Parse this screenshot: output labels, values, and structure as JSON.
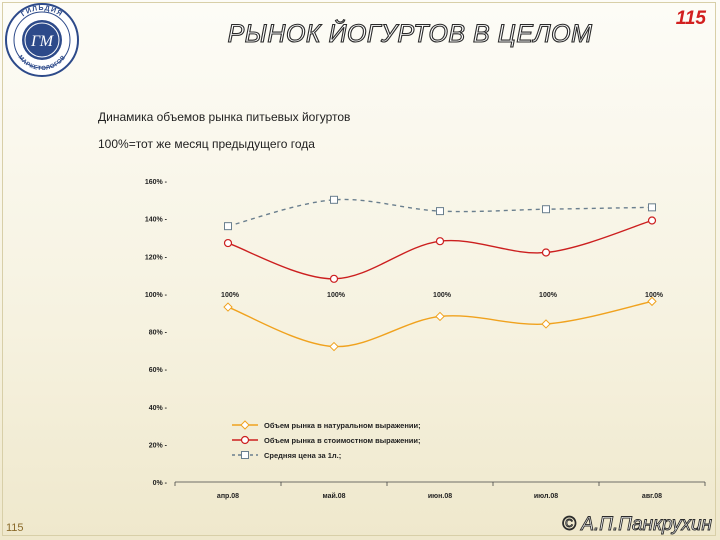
{
  "header": {
    "title": "РЫНОК ЙОГУРТОВ В ЦЕЛОМ",
    "page_number": "115",
    "logo": {
      "icon": "emblem-logo",
      "text_top": "ГИЛЬДИЯ",
      "text_bottom": "МАРКЕТОЛОГОВ",
      "monogram": "ГМ"
    }
  },
  "text": {
    "line1": "Динамика объемов рынка питьевых йогуртов",
    "line2": "100%=тот же месяц предыдущего года"
  },
  "chart_data": {
    "type": "line",
    "categories": [
      "апр.08",
      "май.08",
      "июн.08",
      "июл.08",
      "авг.08"
    ],
    "ylim": [
      0,
      160
    ],
    "y_ticks": [
      "0%",
      "20%",
      "40%",
      "60%",
      "80%",
      "100%",
      "120%",
      "140%",
      "160%"
    ],
    "baseline_labels": [
      "100%",
      "100%",
      "100%",
      "100%",
      "100%"
    ],
    "series": [
      {
        "name": "Объем рынка в натуральном выражении;",
        "values": [
          93,
          72,
          88,
          84,
          96
        ],
        "color": "#f0a21e",
        "marker": "diamond",
        "dash": false
      },
      {
        "name": "Объем рынка в стоимостном выражении;",
        "values": [
          127,
          108,
          128,
          122,
          139
        ],
        "color": "#cc1f1f",
        "marker": "circle",
        "dash": false
      },
      {
        "name": "Средняя цена за 1л.;",
        "values": [
          136,
          150,
          144,
          145,
          146
        ],
        "color": "#6a7f8e",
        "marker": "square",
        "dash": true
      }
    ],
    "legend_position": "bottom-left"
  },
  "footer": {
    "page_number": "115",
    "copyright": "© А.П.Панкрухин"
  }
}
